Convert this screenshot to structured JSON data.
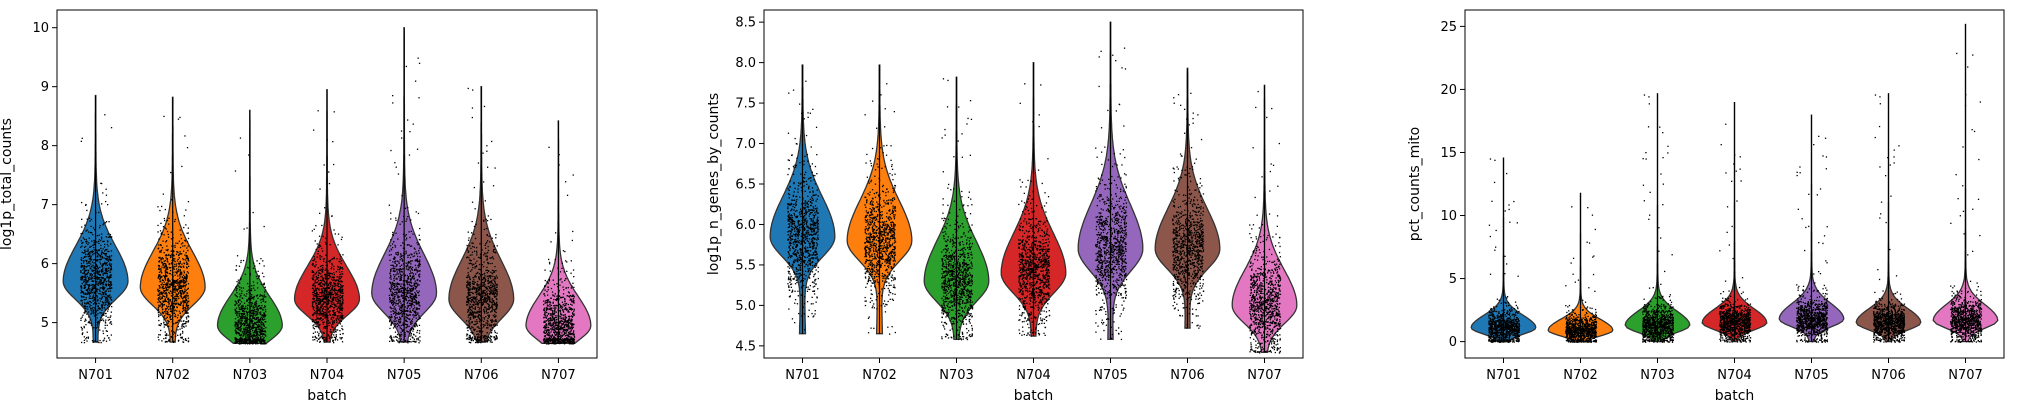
{
  "palette": [
    "#1f77b4",
    "#ff7f0e",
    "#2ca02c",
    "#d62728",
    "#9467bd",
    "#8c564b",
    "#e377c2"
  ],
  "chart_data": [
    {
      "type": "violin",
      "xlabel": "batch",
      "ylabel": "log1p_total_counts",
      "categories": [
        "N701",
        "N702",
        "N703",
        "N704",
        "N705",
        "N706",
        "N707"
      ],
      "ylim": [
        4.4,
        10.3
      ],
      "yticks": [
        5,
        6,
        7,
        8,
        9,
        10
      ],
      "ytick_labels": [
        "5",
        "6",
        "7",
        "8",
        "9",
        "10"
      ],
      "series": [
        {
          "min": 4.67,
          "max": 8.85,
          "median": 5.9,
          "mode": 5.7,
          "spread": 0.55
        },
        {
          "min": 4.67,
          "max": 8.82,
          "median": 5.8,
          "mode": 5.6,
          "spread": 0.55
        },
        {
          "min": 4.65,
          "max": 8.6,
          "median": 5.3,
          "mode": 4.95,
          "spread": 0.45
        },
        {
          "min": 4.67,
          "max": 8.95,
          "median": 5.6,
          "mode": 5.4,
          "spread": 0.5
        },
        {
          "min": 4.67,
          "max": 10.0,
          "median": 5.9,
          "mode": 5.5,
          "spread": 0.6
        },
        {
          "min": 4.67,
          "max": 9.0,
          "median": 5.8,
          "mode": 5.4,
          "spread": 0.6
        },
        {
          "min": 4.65,
          "max": 8.42,
          "median": 5.2,
          "mode": 4.95,
          "spread": 0.45
        }
      ]
    },
    {
      "type": "violin",
      "xlabel": "batch",
      "ylabel": "log1p_n_genes_by_counts",
      "categories": [
        "N701",
        "N702",
        "N703",
        "N704",
        "N705",
        "N706",
        "N707"
      ],
      "ylim": [
        4.35,
        8.65
      ],
      "yticks": [
        4.5,
        5.0,
        5.5,
        6.0,
        6.5,
        7.0,
        7.5,
        8.0,
        8.5
      ],
      "ytick_labels": [
        "4.5",
        "5.0",
        "5.5",
        "6.0",
        "6.5",
        "7.0",
        "7.5",
        "8.0",
        "8.5"
      ],
      "series": [
        {
          "min": 4.65,
          "max": 7.97,
          "median": 5.9,
          "mode": 5.85,
          "spread": 0.45
        },
        {
          "min": 4.65,
          "max": 7.97,
          "median": 5.9,
          "mode": 5.8,
          "spread": 0.45
        },
        {
          "min": 4.58,
          "max": 7.82,
          "median": 5.5,
          "mode": 5.3,
          "spread": 0.45
        },
        {
          "min": 4.62,
          "max": 8.0,
          "median": 5.6,
          "mode": 5.4,
          "spread": 0.45
        },
        {
          "min": 4.58,
          "max": 8.5,
          "median": 5.9,
          "mode": 5.7,
          "spread": 0.5
        },
        {
          "min": 4.72,
          "max": 7.93,
          "median": 5.8,
          "mode": 5.7,
          "spread": 0.45
        },
        {
          "min": 4.42,
          "max": 7.72,
          "median": 5.3,
          "mode": 5.0,
          "spread": 0.4
        }
      ]
    },
    {
      "type": "violin",
      "xlabel": "batch",
      "ylabel": "pct_counts_mito",
      "categories": [
        "N701",
        "N702",
        "N703",
        "N704",
        "N705",
        "N706",
        "N707"
      ],
      "ylim": [
        -1.3,
        26.3
      ],
      "yticks": [
        0,
        5,
        10,
        15,
        20,
        25
      ],
      "ytick_labels": [
        "0",
        "5",
        "10",
        "15",
        "20",
        "25"
      ],
      "series": [
        {
          "min": 0,
          "max": 14.6,
          "median": 1.0,
          "mode": 1.1,
          "spread": 0.9
        },
        {
          "min": 0,
          "max": 11.8,
          "median": 0.8,
          "mode": 0.9,
          "spread": 0.8
        },
        {
          "min": 0,
          "max": 19.7,
          "median": 1.2,
          "mode": 1.3,
          "spread": 1.0
        },
        {
          "min": 0,
          "max": 19.0,
          "median": 1.4,
          "mode": 1.5,
          "spread": 1.0
        },
        {
          "min": 0,
          "max": 18.0,
          "median": 1.6,
          "mode": 1.8,
          "spread": 1.1
        },
        {
          "min": 0,
          "max": 19.7,
          "median": 1.4,
          "mode": 1.5,
          "spread": 1.0
        },
        {
          "min": 0,
          "max": 25.2,
          "median": 1.6,
          "mode": 1.7,
          "spread": 1.1
        }
      ]
    }
  ]
}
